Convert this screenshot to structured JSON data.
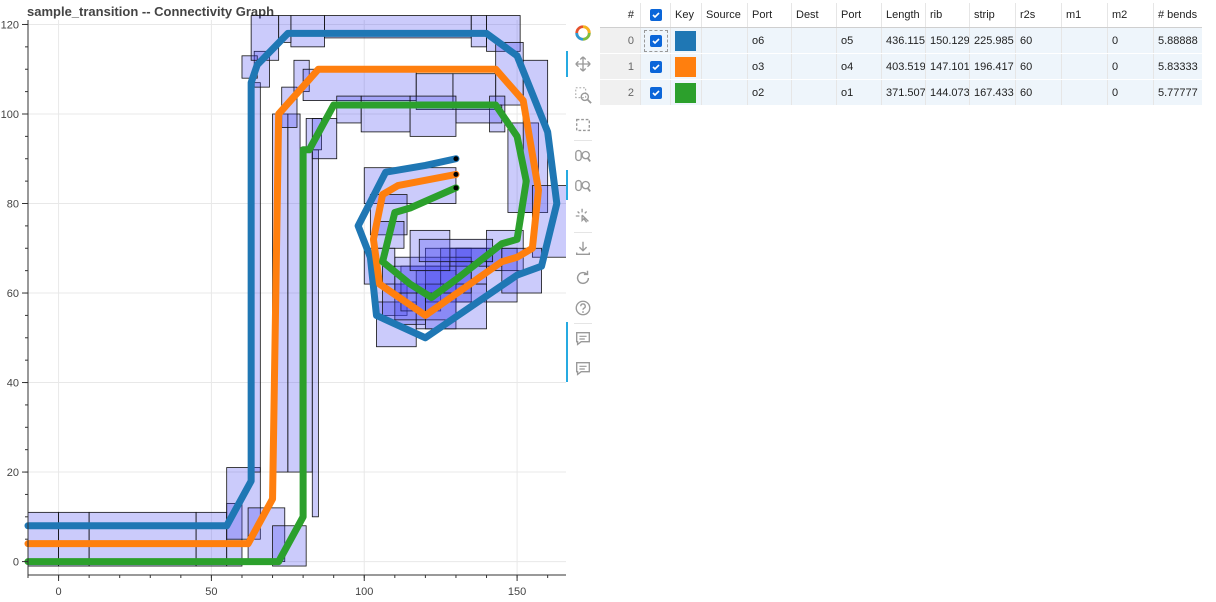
{
  "title": "sample_transition -- Connectivity Graph",
  "chart_data": {
    "type": "line",
    "title": "sample_transition -- Connectivity Graph",
    "xlabel": "",
    "ylabel": "",
    "xlim": [
      -10,
      166
    ],
    "ylim": [
      -3,
      121
    ],
    "x_ticks": [
      0,
      50,
      100,
      150
    ],
    "y_ticks": [
      0,
      20,
      40,
      60,
      80,
      100,
      120
    ],
    "grid": true,
    "series": [
      {
        "color": "#1f77b4",
        "x": [
          -10,
          55,
          63,
          63,
          65,
          75,
          140,
          150,
          160,
          163,
          158,
          150,
          120,
          104,
          102,
          98,
          107,
          120,
          130
        ],
        "y": [
          8,
          8,
          18,
          107,
          111,
          118,
          118,
          113,
          96,
          80,
          66,
          64,
          50,
          55,
          68,
          75,
          87,
          88.5,
          90
        ]
      },
      {
        "color": "#ff7f0e",
        "x": [
          -10,
          62,
          70,
          72,
          72,
          85,
          143,
          152,
          157,
          155,
          150,
          145,
          120,
          105,
          103,
          106,
          111,
          130
        ],
        "y": [
          4,
          4,
          14,
          100,
          100,
          110,
          110,
          103,
          83,
          70,
          68,
          67,
          55,
          62,
          72,
          82,
          84,
          86.5
        ]
      },
      {
        "color": "#2ca02c",
        "x": [
          -10,
          72,
          80,
          80,
          82,
          90,
          143,
          150,
          153,
          150,
          145,
          130,
          122,
          115,
          106,
          110,
          115,
          130
        ],
        "y": [
          0,
          0,
          10,
          92,
          92,
          102,
          102,
          95,
          85,
          72,
          71,
          63,
          59,
          62,
          67,
          78,
          79,
          83.5
        ]
      }
    ],
    "boxes": [
      [
        -10,
        -1,
        0,
        11
      ],
      [
        0,
        -1,
        10,
        11
      ],
      [
        10,
        -1,
        45,
        11
      ],
      [
        45,
        -1,
        55,
        11
      ],
      [
        55,
        -1,
        60,
        13
      ],
      [
        55,
        5,
        66,
        21
      ],
      [
        62,
        0,
        74,
        12
      ],
      [
        70,
        -1,
        81,
        8
      ],
      [
        63,
        20,
        66,
        107
      ],
      [
        70,
        20,
        75,
        100
      ],
      [
        75,
        20,
        79,
        100
      ],
      [
        80,
        20,
        83,
        92
      ],
      [
        83,
        10,
        85,
        92
      ],
      [
        64,
        106,
        69,
        114
      ],
      [
        60,
        108,
        65,
        113
      ],
      [
        63,
        112,
        72,
        122
      ],
      [
        72,
        116,
        76,
        122
      ],
      [
        76,
        115,
        87,
        122
      ],
      [
        87,
        117,
        135,
        122
      ],
      [
        135,
        115,
        140,
        122
      ],
      [
        140,
        114,
        151,
        122
      ],
      [
        143,
        102,
        152,
        116
      ],
      [
        147,
        78,
        157,
        98
      ],
      [
        152,
        78,
        160,
        112
      ],
      [
        155,
        68,
        167,
        84
      ],
      [
        73,
        97,
        78,
        106
      ],
      [
        77,
        105,
        82,
        112
      ],
      [
        80,
        103,
        117,
        110
      ],
      [
        117,
        101,
        129,
        109
      ],
      [
        129,
        101,
        143,
        109
      ],
      [
        141,
        96,
        146,
        104
      ],
      [
        81,
        92,
        86,
        99
      ],
      [
        83,
        90,
        91,
        99
      ],
      [
        91,
        98,
        99,
        104
      ],
      [
        99,
        96,
        115,
        104
      ],
      [
        115,
        95,
        130,
        104
      ],
      [
        130,
        98,
        145,
        102
      ],
      [
        100,
        80,
        130,
        88
      ],
      [
        102,
        73,
        114,
        82
      ],
      [
        104,
        70,
        113,
        76
      ],
      [
        100,
        62,
        110,
        70
      ],
      [
        103,
        55,
        114,
        62
      ],
      [
        104,
        48,
        117,
        58
      ],
      [
        110,
        53,
        120,
        62
      ],
      [
        112,
        56,
        125,
        66
      ],
      [
        117,
        52,
        130,
        65
      ],
      [
        120,
        58,
        135,
        70
      ],
      [
        125,
        62,
        140,
        70
      ],
      [
        130,
        58,
        150,
        70
      ],
      [
        128,
        66,
        145,
        70
      ],
      [
        140,
        65,
        152,
        74
      ],
      [
        145,
        60,
        158,
        70
      ],
      [
        106,
        54,
        130,
        66
      ],
      [
        120,
        52,
        140,
        62
      ],
      [
        110,
        60,
        135,
        68
      ],
      [
        115,
        65,
        128,
        74
      ],
      [
        118,
        67,
        142,
        72
      ]
    ]
  },
  "toolbar": {
    "tools": [
      {
        "name": "bokeh-logo-icon"
      },
      {
        "name": "pan-icon"
      },
      {
        "name": "box-zoom-icon"
      },
      {
        "name": "box-select-icon"
      },
      {
        "name": "wheel-zoom-icon"
      },
      {
        "name": "wheel-zoom-icon-2"
      },
      {
        "name": "tap-icon"
      },
      {
        "name": "save-icon"
      },
      {
        "name": "reset-icon"
      },
      {
        "name": "help-icon"
      },
      {
        "name": "hover-icon"
      },
      {
        "name": "hover-icon-2"
      }
    ]
  },
  "table": {
    "headers": [
      "#",
      "",
      "Key",
      "Source",
      "Port",
      "Dest",
      "Port",
      "Length",
      "rib",
      "strip",
      "r2s",
      "m1",
      "m2",
      "# bends"
    ],
    "rows": [
      {
        "idx": "0",
        "key_color": "#1f77b4",
        "source": "",
        "src_port": "o6",
        "dest": "",
        "dst_port": "o5",
        "length": "436.115",
        "rib": "150.129",
        "strip": "225.985",
        "r2s": "60",
        "m1": "",
        "m2": "0",
        "bends": "5.88888"
      },
      {
        "idx": "1",
        "key_color": "#ff7f0e",
        "source": "",
        "src_port": "o3",
        "dest": "",
        "dst_port": "o4",
        "length": "403.519",
        "rib": "147.101",
        "strip": "196.417",
        "r2s": "60",
        "m1": "",
        "m2": "0",
        "bends": "5.83333"
      },
      {
        "idx": "2",
        "key_color": "#2ca02c",
        "source": "",
        "src_port": "o2",
        "dest": "",
        "dst_port": "o1",
        "length": "371.507",
        "rib": "144.073",
        "strip": "167.433",
        "r2s": "60",
        "m1": "",
        "m2": "0",
        "bends": "5.77777"
      }
    ]
  }
}
